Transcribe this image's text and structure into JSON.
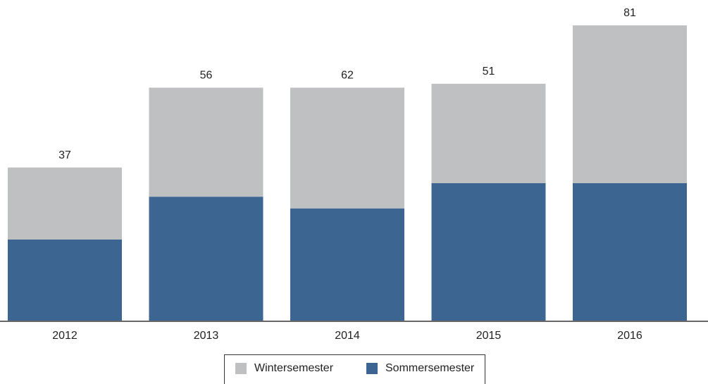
{
  "chart_data": {
    "type": "stacked_bar",
    "categories": [
      "2012",
      "2013",
      "2014",
      "2015",
      "2016"
    ],
    "series": [
      {
        "name": "Wintersemester",
        "color": "#bfc0c2",
        "values": [
          37,
          56,
          62,
          51,
          81
        ]
      },
      {
        "name": "Sommersemester",
        "color": "#3d6592",
        "values": [
          42,
          64,
          58,
          71,
          71
        ]
      }
    ],
    "legend": "bottom"
  }
}
